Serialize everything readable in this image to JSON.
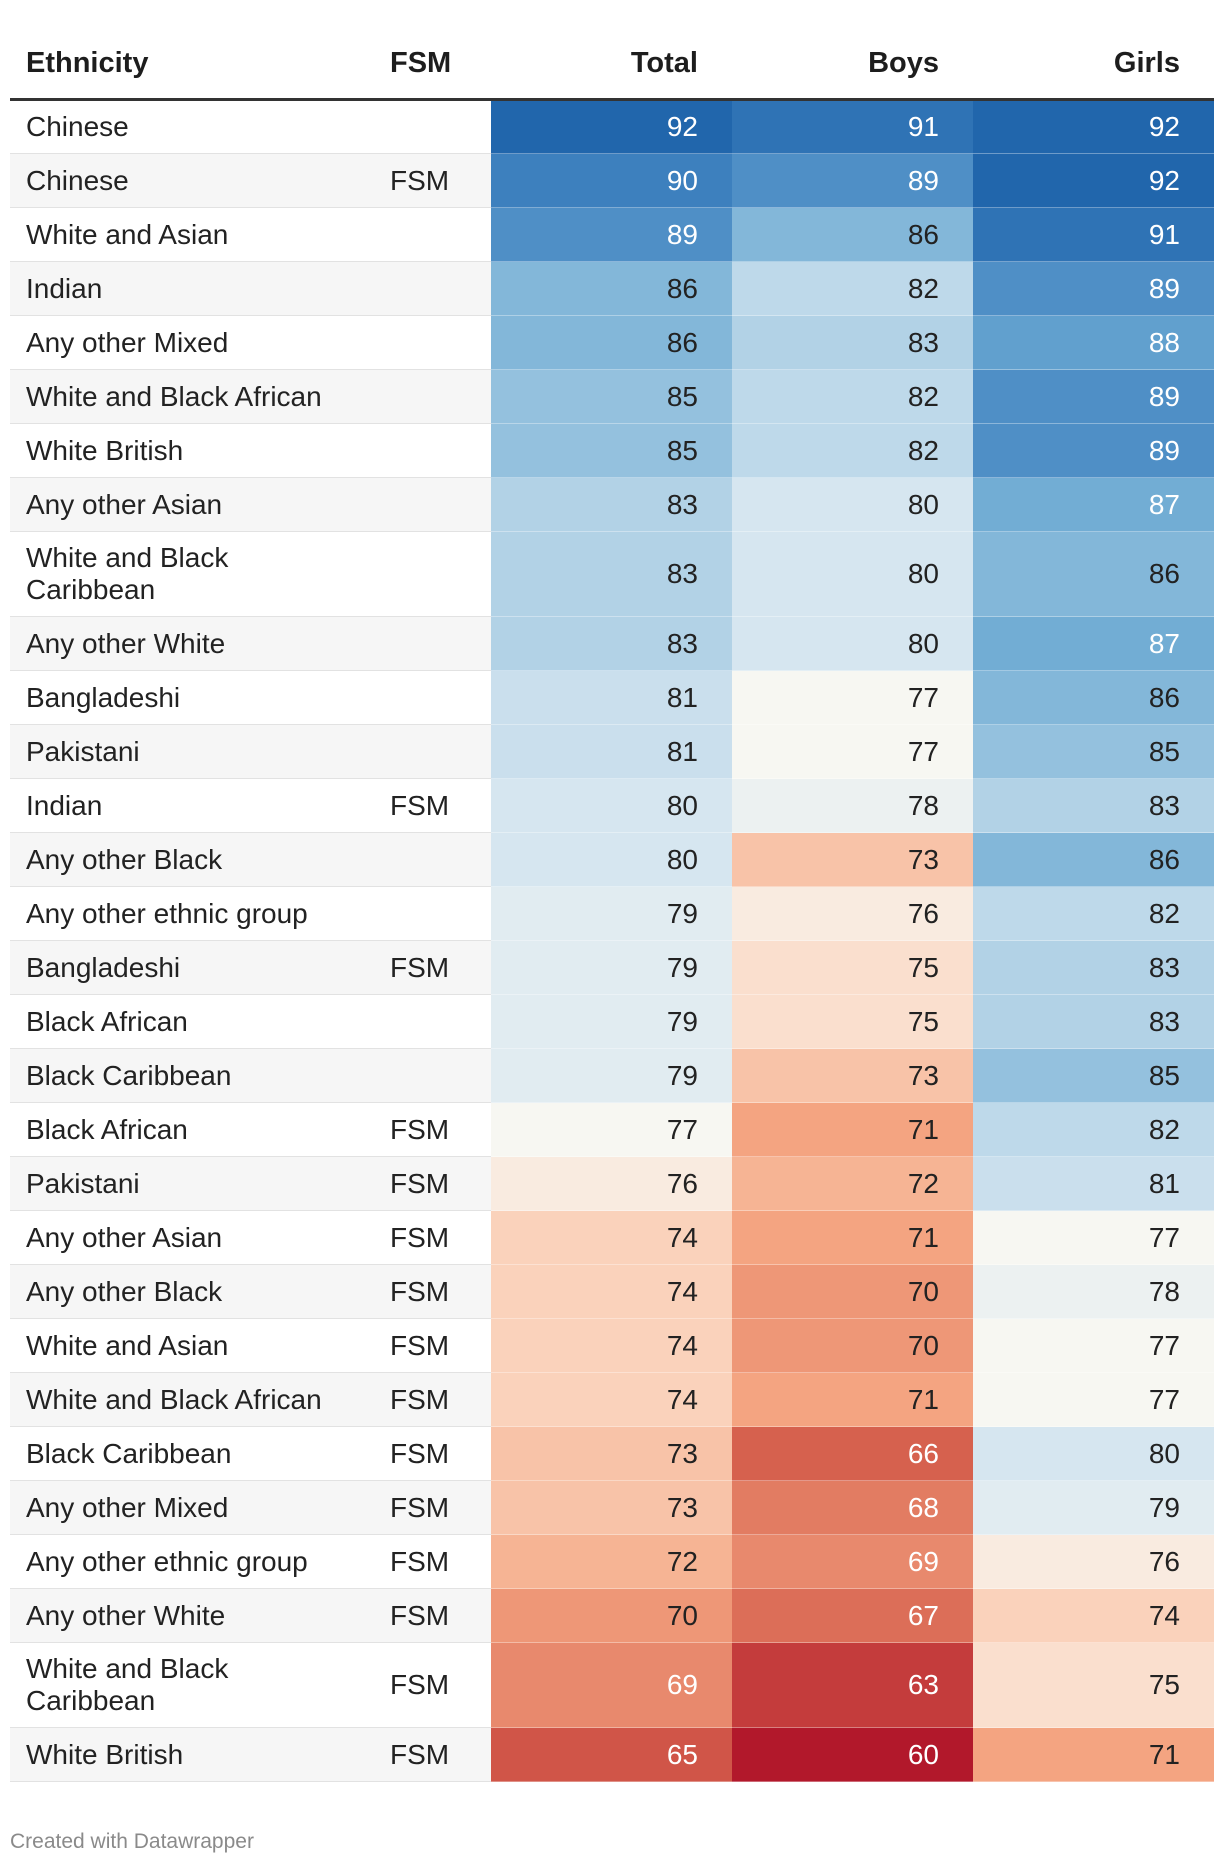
{
  "chart_data": {
    "type": "table",
    "columns": [
      "Ethnicity",
      "FSM",
      "Total",
      "Boys",
      "Girls"
    ],
    "rows": [
      {
        "ethnicity": "Chinese",
        "fsm": "",
        "total": 92,
        "boys": 91,
        "girls": 92
      },
      {
        "ethnicity": "Chinese",
        "fsm": "FSM",
        "total": 90,
        "boys": 89,
        "girls": 92
      },
      {
        "ethnicity": "White and Asian",
        "fsm": "",
        "total": 89,
        "boys": 86,
        "girls": 91
      },
      {
        "ethnicity": "Indian",
        "fsm": "",
        "total": 86,
        "boys": 82,
        "girls": 89
      },
      {
        "ethnicity": "Any other Mixed",
        "fsm": "",
        "total": 86,
        "boys": 83,
        "girls": 88
      },
      {
        "ethnicity": "White and Black African",
        "fsm": "",
        "total": 85,
        "boys": 82,
        "girls": 89
      },
      {
        "ethnicity": "White British",
        "fsm": "",
        "total": 85,
        "boys": 82,
        "girls": 89
      },
      {
        "ethnicity": "Any other Asian",
        "fsm": "",
        "total": 83,
        "boys": 80,
        "girls": 87
      },
      {
        "ethnicity": "White and Black Caribbean",
        "fsm": "",
        "total": 83,
        "boys": 80,
        "girls": 86
      },
      {
        "ethnicity": "Any other White",
        "fsm": "",
        "total": 83,
        "boys": 80,
        "girls": 87
      },
      {
        "ethnicity": "Bangladeshi",
        "fsm": "",
        "total": 81,
        "boys": 77,
        "girls": 86
      },
      {
        "ethnicity": "Pakistani",
        "fsm": "",
        "total": 81,
        "boys": 77,
        "girls": 85
      },
      {
        "ethnicity": "Indian",
        "fsm": "FSM",
        "total": 80,
        "boys": 78,
        "girls": 83
      },
      {
        "ethnicity": "Any other Black",
        "fsm": "",
        "total": 80,
        "boys": 73,
        "girls": 86
      },
      {
        "ethnicity": "Any other ethnic group",
        "fsm": "",
        "total": 79,
        "boys": 76,
        "girls": 82
      },
      {
        "ethnicity": "Bangladeshi",
        "fsm": "FSM",
        "total": 79,
        "boys": 75,
        "girls": 83
      },
      {
        "ethnicity": "Black African",
        "fsm": "",
        "total": 79,
        "boys": 75,
        "girls": 83
      },
      {
        "ethnicity": "Black Caribbean",
        "fsm": "",
        "total": 79,
        "boys": 73,
        "girls": 85
      },
      {
        "ethnicity": "Black African",
        "fsm": "FSM",
        "total": 77,
        "boys": 71,
        "girls": 82
      },
      {
        "ethnicity": "Pakistani",
        "fsm": "FSM",
        "total": 76,
        "boys": 72,
        "girls": 81
      },
      {
        "ethnicity": "Any other Asian",
        "fsm": "FSM",
        "total": 74,
        "boys": 71,
        "girls": 77
      },
      {
        "ethnicity": "Any other Black",
        "fsm": "FSM",
        "total": 74,
        "boys": 70,
        "girls": 78
      },
      {
        "ethnicity": "White and Asian",
        "fsm": "FSM",
        "total": 74,
        "boys": 70,
        "girls": 77
      },
      {
        "ethnicity": "White and Black African",
        "fsm": "FSM",
        "total": 74,
        "boys": 71,
        "girls": 77
      },
      {
        "ethnicity": "Black Caribbean",
        "fsm": "FSM",
        "total": 73,
        "boys": 66,
        "girls": 80
      },
      {
        "ethnicity": "Any other Mixed",
        "fsm": "FSM",
        "total": 73,
        "boys": 68,
        "girls": 79
      },
      {
        "ethnicity": "Any other ethnic group",
        "fsm": "FSM",
        "total": 72,
        "boys": 69,
        "girls": 76
      },
      {
        "ethnicity": "Any other White",
        "fsm": "FSM",
        "total": 70,
        "boys": 67,
        "girls": 74
      },
      {
        "ethnicity": "White and Black Caribbean",
        "fsm": "FSM",
        "total": 69,
        "boys": 63,
        "girls": 75
      },
      {
        "ethnicity": "White British",
        "fsm": "FSM",
        "total": 65,
        "boys": 60,
        "girls": 71
      }
    ],
    "color_scale": {
      "type": "diverging",
      "min": 60,
      "mid": 77,
      "max": 92,
      "low_color": "#b2182b",
      "mid_color": "#f7f7f2",
      "high_color": "#2166ac"
    }
  },
  "headers": {
    "ethnicity": "Ethnicity",
    "fsm": "FSM",
    "total": "Total",
    "boys": "Boys",
    "girls": "Girls"
  },
  "footer": {
    "credit": "Created with Datawrapper"
  }
}
